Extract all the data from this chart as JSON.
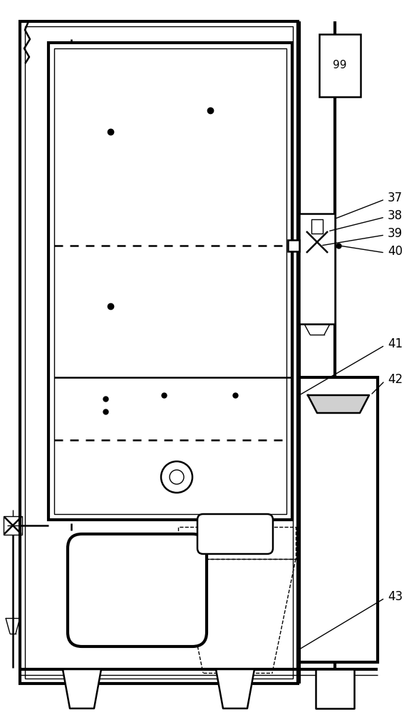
{
  "bg_color": "#ffffff",
  "line_color": "#000000",
  "fig_width": 5.88,
  "fig_height": 10.0
}
